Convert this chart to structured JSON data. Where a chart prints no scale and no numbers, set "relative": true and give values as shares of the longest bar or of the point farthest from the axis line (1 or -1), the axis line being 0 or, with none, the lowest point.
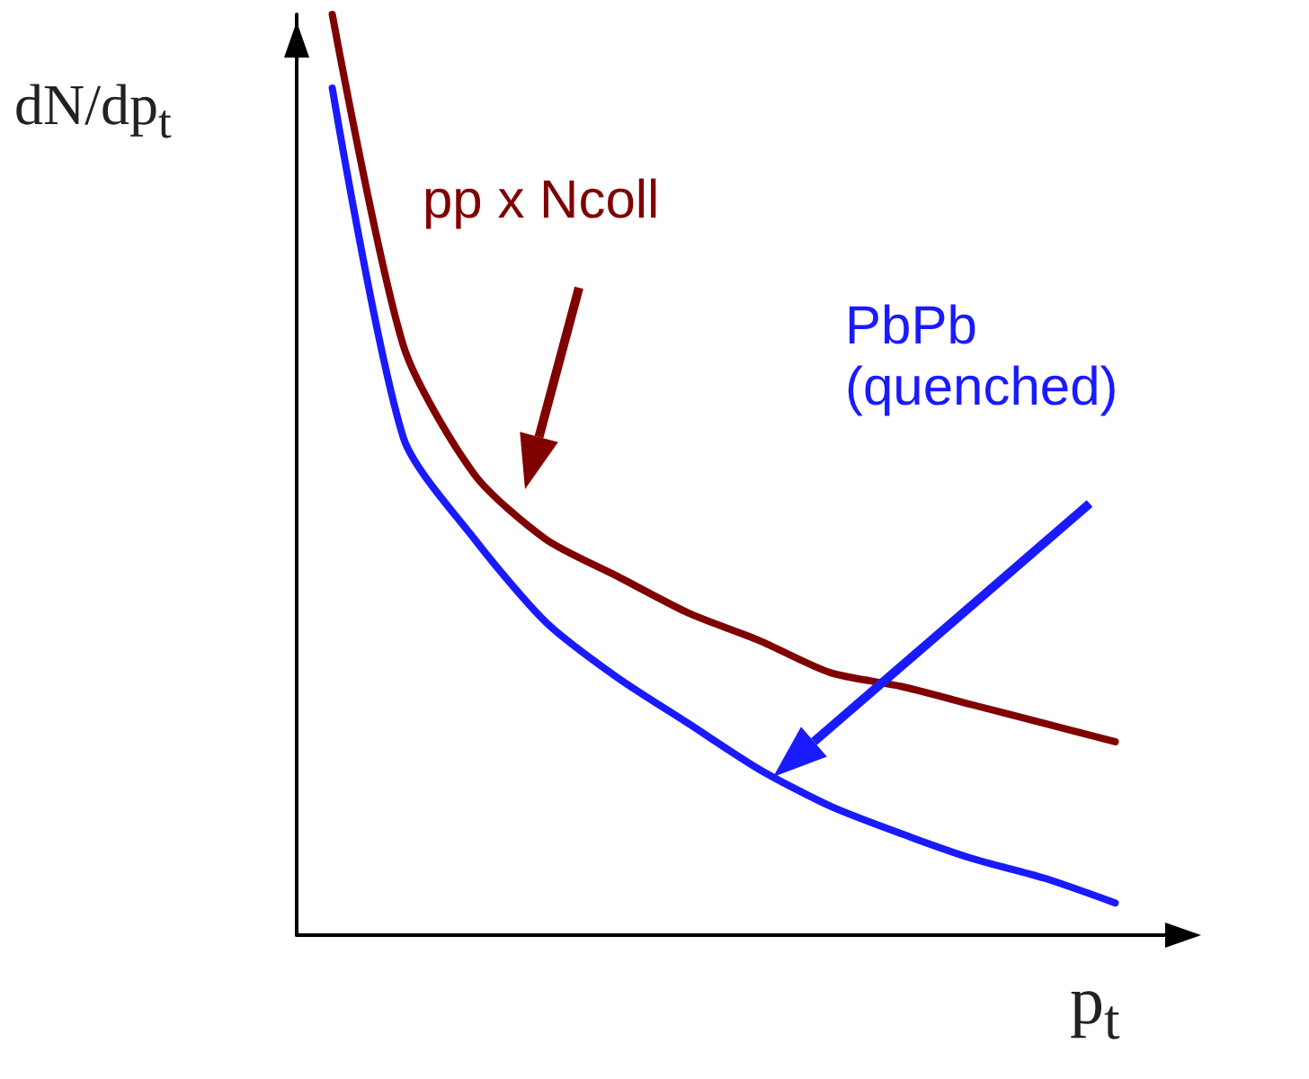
{
  "chart_data": {
    "type": "line",
    "relative": true,
    "xlabel": "p$_{t}$",
    "ylabel": "dN/dp$_{t}$",
    "categories": [
      null,
      null,
      null,
      null,
      null,
      null,
      null,
      null,
      null,
      null,
      null,
      null
    ],
    "series": [
      {
        "name": "pp x Ncoll",
        "color": "#800000",
        "values": [
          1.0,
          0.64,
          0.5,
          0.43,
          0.39,
          0.35,
          0.32,
          0.285,
          0.27,
          0.25,
          0.23,
          0.21
        ]
      },
      {
        "name": "PbPb (quenched)",
        "color": "#1a1aff",
        "values": [
          0.92,
          0.54,
          0.43,
          0.34,
          0.28,
          0.23,
          0.18,
          0.14,
          0.11,
          0.083,
          0.062,
          0.035
        ]
      }
    ],
    "legend": false,
    "grid": false,
    "marker": "none",
    "line_style": "solid"
  }
}
